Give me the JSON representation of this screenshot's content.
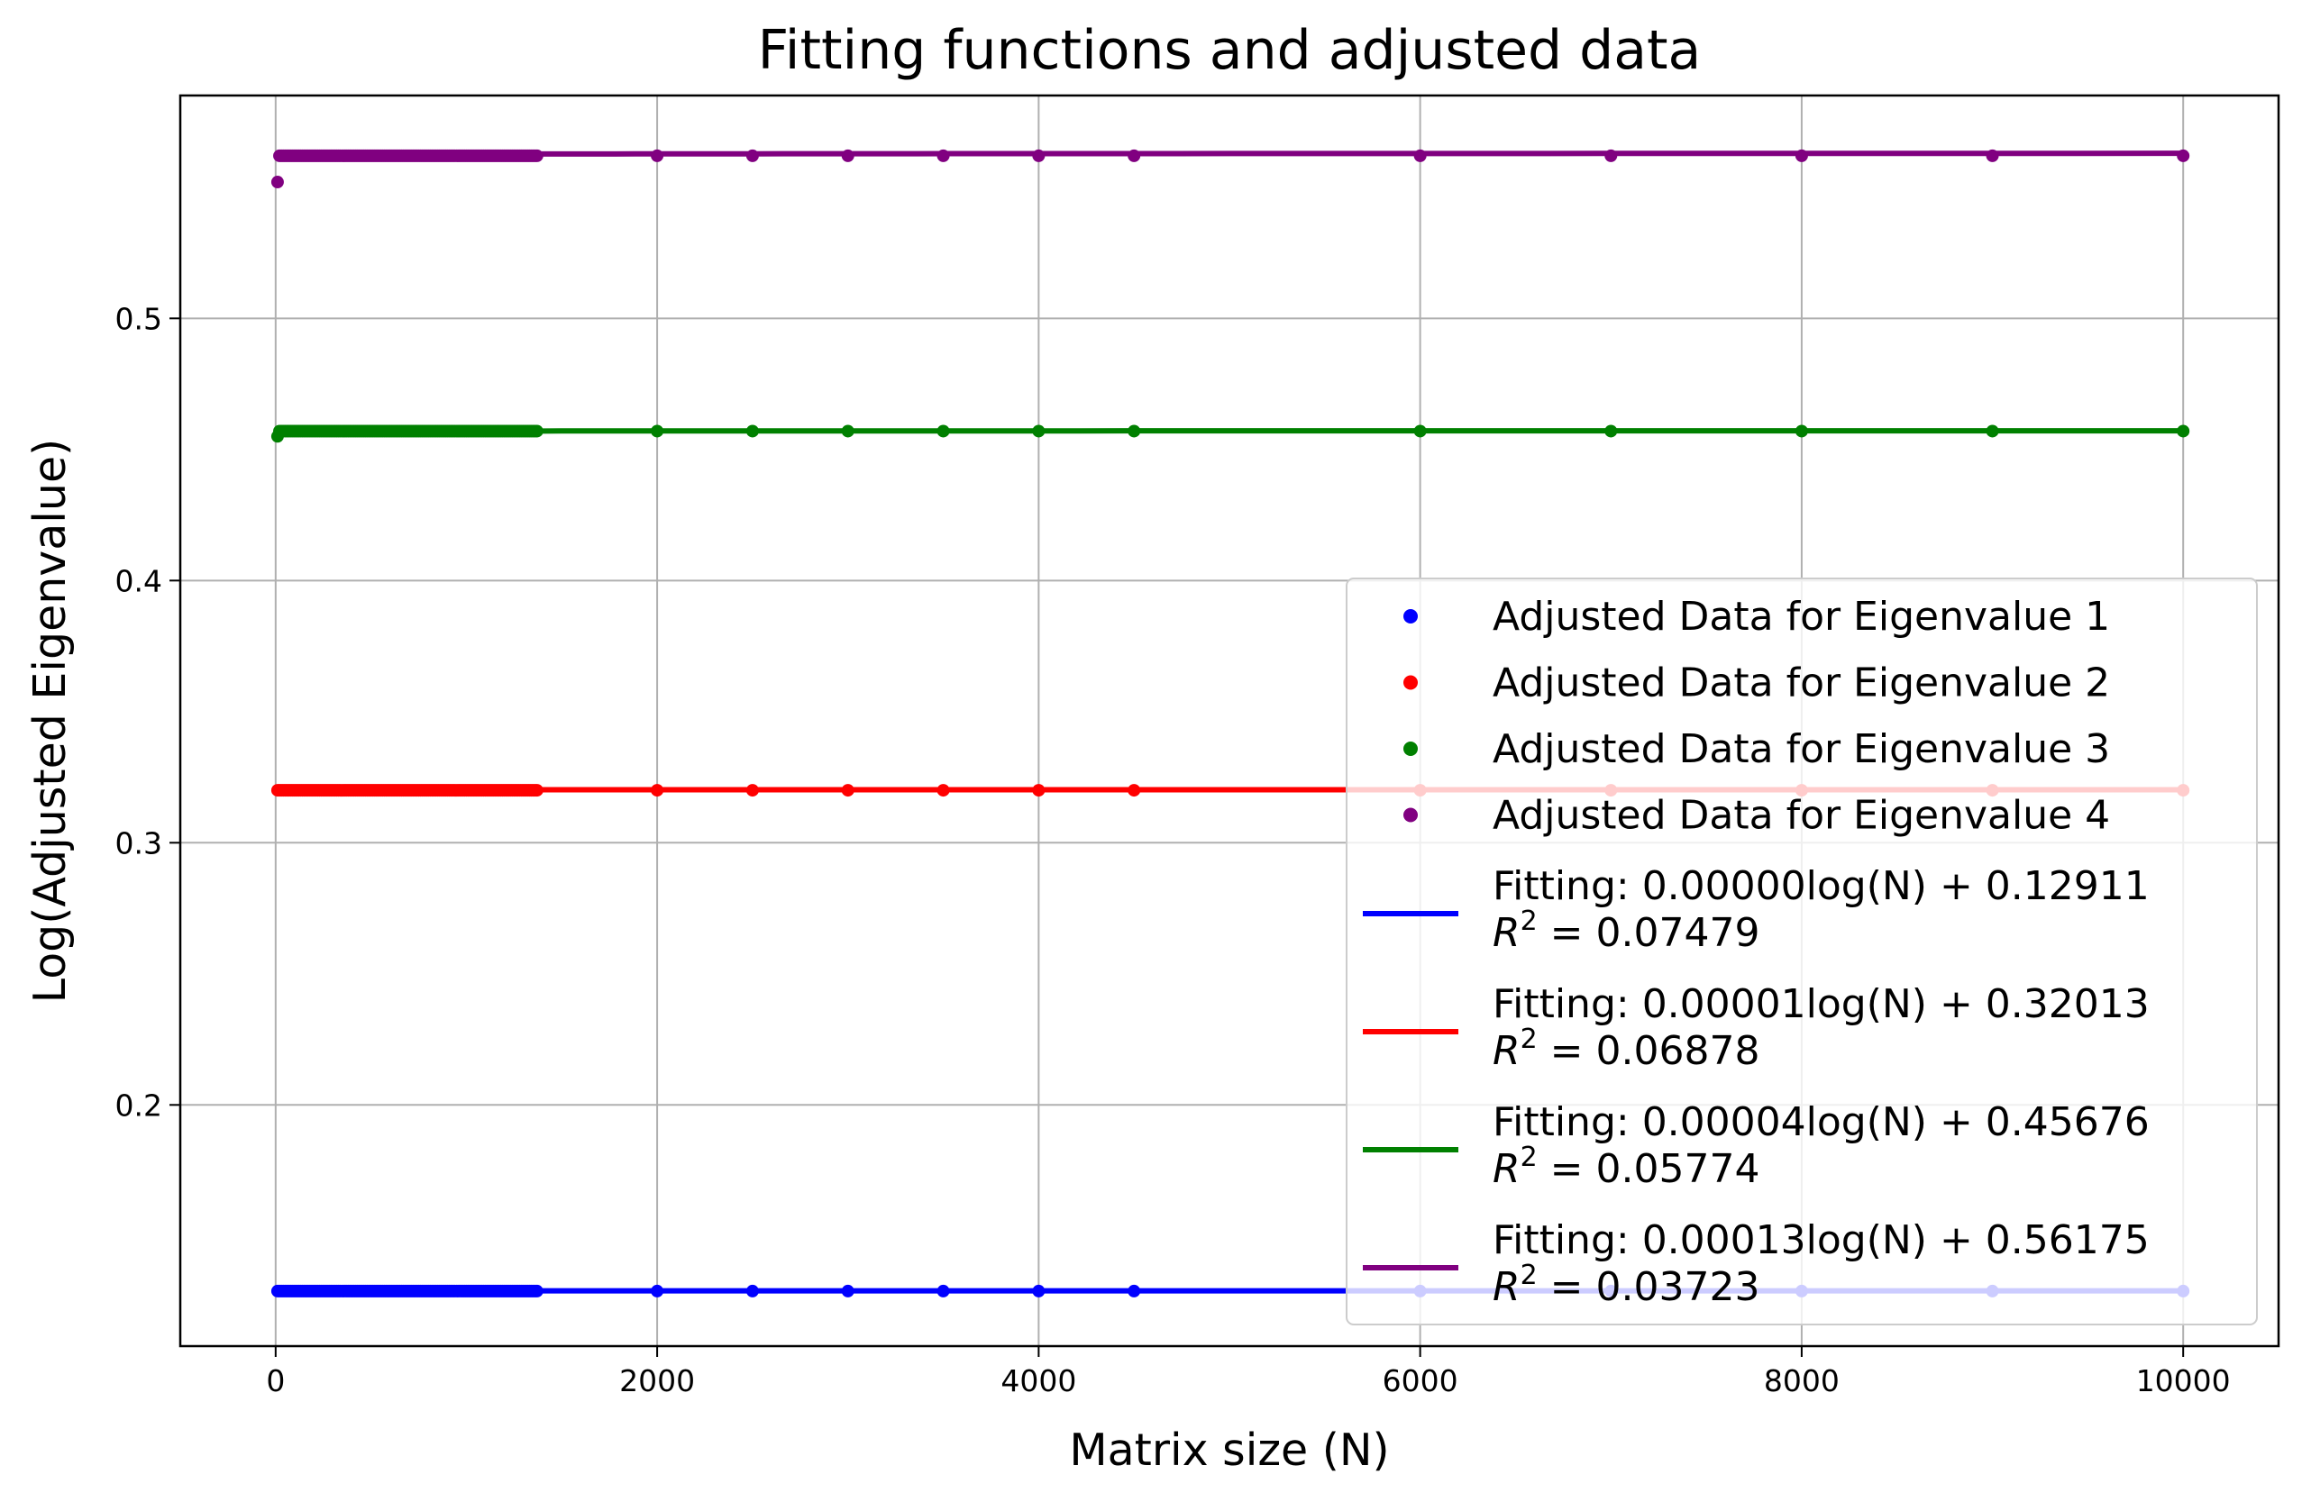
{
  "chart_data": {
    "type": "scatter",
    "title": "Fitting functions and adjusted data",
    "xlabel": "Matrix size (N)",
    "ylabel": "Log(Adjusted Eigenvalue)",
    "xlim": [
      -500,
      10500
    ],
    "ylim": [
      0.108,
      0.585
    ],
    "xticks": [
      0,
      2000,
      4000,
      6000,
      8000,
      10000
    ],
    "yticks": [
      0.2,
      0.3,
      0.4,
      0.5
    ],
    "grid": true,
    "legend_position": "lower right",
    "x": [
      10,
      20,
      30,
      40,
      50,
      60,
      70,
      80,
      90,
      100,
      110,
      120,
      130,
      140,
      150,
      160,
      170,
      180,
      190,
      200,
      210,
      220,
      230,
      240,
      250,
      260,
      270,
      280,
      290,
      300,
      310,
      320,
      330,
      340,
      350,
      360,
      370,
      380,
      390,
      400,
      410,
      420,
      430,
      440,
      450,
      460,
      470,
      480,
      490,
      500,
      510,
      520,
      530,
      540,
      550,
      560,
      570,
      580,
      590,
      600,
      610,
      620,
      630,
      640,
      650,
      660,
      670,
      680,
      690,
      700,
      710,
      720,
      730,
      740,
      750,
      760,
      770,
      780,
      790,
      800,
      810,
      820,
      830,
      840,
      850,
      860,
      870,
      880,
      890,
      900,
      910,
      920,
      930,
      940,
      950,
      960,
      970,
      980,
      990,
      1000,
      1010,
      1020,
      1030,
      1040,
      1050,
      1060,
      1070,
      1080,
      1090,
      1100,
      1110,
      1120,
      1130,
      1140,
      1150,
      1160,
      1170,
      1180,
      1190,
      1200,
      1210,
      1220,
      1230,
      1240,
      1250,
      1260,
      1270,
      1280,
      1290,
      1300,
      1310,
      1320,
      1330,
      1340,
      1350,
      1360,
      1370,
      2000,
      2500,
      3000,
      3500,
      4000,
      4500,
      6000,
      7000,
      8000,
      9000,
      10000
    ],
    "series": [
      {
        "name": "Adjusted Data for Eigenvalue 1",
        "color": "#0000ff",
        "constant_value": 0.129,
        "first_value": 0.129
      },
      {
        "name": "Adjusted Data for Eigenvalue 2",
        "color": "#ff0000",
        "constant_value": 0.32,
        "first_value": 0.32
      },
      {
        "name": "Adjusted Data for Eigenvalue 3",
        "color": "#008000",
        "constant_value": 0.457,
        "first_value": 0.455
      },
      {
        "name": "Adjusted Data for Eigenvalue 4",
        "color": "#800080",
        "constant_value": 0.562,
        "first_value": 0.552
      }
    ],
    "fits": [
      {
        "label": "Fitting: 0.00000log(N) + 0.12911",
        "r2_label": "R",
        "r2_exp": "2",
        "r2_value": " = 0.07479",
        "color": "#0000ff",
        "slope": 0.0,
        "intercept": 0.12911
      },
      {
        "label": "Fitting: 0.00001log(N) + 0.32013",
        "r2_label": "R",
        "r2_exp": "2",
        "r2_value": " = 0.06878",
        "color": "#ff0000",
        "slope": 1e-05,
        "intercept": 0.32013
      },
      {
        "label": "Fitting: 0.00004log(N) + 0.45676",
        "r2_label": "R",
        "r2_exp": "2",
        "r2_value": " = 0.05774",
        "color": "#008000",
        "slope": 4e-05,
        "intercept": 0.45676
      },
      {
        "label": "Fitting: 0.00013log(N) + 0.56175",
        "r2_label": "R",
        "r2_exp": "2",
        "r2_value": " = 0.03723",
        "color": "#800080",
        "slope": 0.00013,
        "intercept": 0.56175
      }
    ]
  }
}
